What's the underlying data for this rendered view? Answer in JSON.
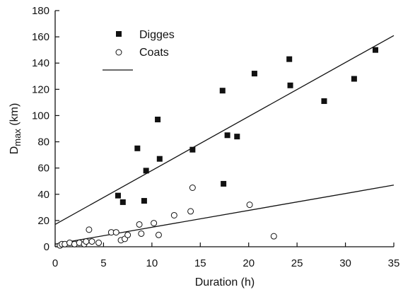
{
  "chart_data": {
    "type": "scatter",
    "title": "",
    "xlabel": "Duration (h)",
    "ylabel_main": "D",
    "ylabel_sub": "max",
    "ylabel_unit": " (km)",
    "xlim": [
      0,
      35
    ],
    "ylim": [
      0,
      180
    ],
    "xticks": [
      0,
      5,
      10,
      15,
      20,
      25,
      30,
      35
    ],
    "yticks": [
      0,
      20,
      40,
      60,
      80,
      100,
      120,
      140,
      160,
      180
    ],
    "grid": false,
    "legend_placement": "top-left",
    "series": [
      {
        "name": "Digges",
        "marker": "filled-square",
        "color": "#111111",
        "points": [
          [
            6.5,
            39
          ],
          [
            7.0,
            34
          ],
          [
            8.5,
            75
          ],
          [
            9.2,
            35
          ],
          [
            9.4,
            58
          ],
          [
            10.6,
            97
          ],
          [
            10.8,
            67
          ],
          [
            14.2,
            74
          ],
          [
            17.3,
            119
          ],
          [
            17.4,
            48
          ],
          [
            17.8,
            85
          ],
          [
            18.8,
            84
          ],
          [
            20.6,
            132
          ],
          [
            24.2,
            143
          ],
          [
            24.3,
            123
          ],
          [
            27.8,
            111
          ],
          [
            30.9,
            128
          ],
          [
            33.1,
            150
          ]
        ]
      },
      {
        "name": "Coats",
        "marker": "open-circle",
        "color": "#111111",
        "points": [
          [
            0.5,
            1
          ],
          [
            0.7,
            2
          ],
          [
            1.0,
            2
          ],
          [
            1.5,
            3
          ],
          [
            2.0,
            2
          ],
          [
            2.5,
            3
          ],
          [
            3.0,
            2
          ],
          [
            3.2,
            4
          ],
          [
            3.5,
            13
          ],
          [
            3.8,
            4
          ],
          [
            4.5,
            3
          ],
          [
            5.8,
            11
          ],
          [
            6.3,
            11
          ],
          [
            6.8,
            5
          ],
          [
            7.2,
            6
          ],
          [
            7.5,
            9
          ],
          [
            8.7,
            17
          ],
          [
            8.9,
            10
          ],
          [
            10.2,
            18
          ],
          [
            10.7,
            9
          ],
          [
            12.3,
            24
          ],
          [
            14.0,
            27
          ],
          [
            14.2,
            45
          ],
          [
            20.1,
            32
          ],
          [
            22.6,
            8
          ]
        ]
      },
      {
        "name": "",
        "marker": "line",
        "color": "#111111",
        "points": [
          [
            0,
            17
          ],
          [
            35,
            161
          ]
        ]
      },
      {
        "name": "",
        "marker": "line",
        "color": "#111111",
        "points": [
          [
            0,
            2
          ],
          [
            35,
            47
          ]
        ]
      }
    ],
    "legend_entries": [
      {
        "label": "Digges",
        "marker": "filled-square"
      },
      {
        "label": "Coats",
        "marker": "open-circle"
      },
      {
        "label": "",
        "marker": "line"
      }
    ]
  }
}
